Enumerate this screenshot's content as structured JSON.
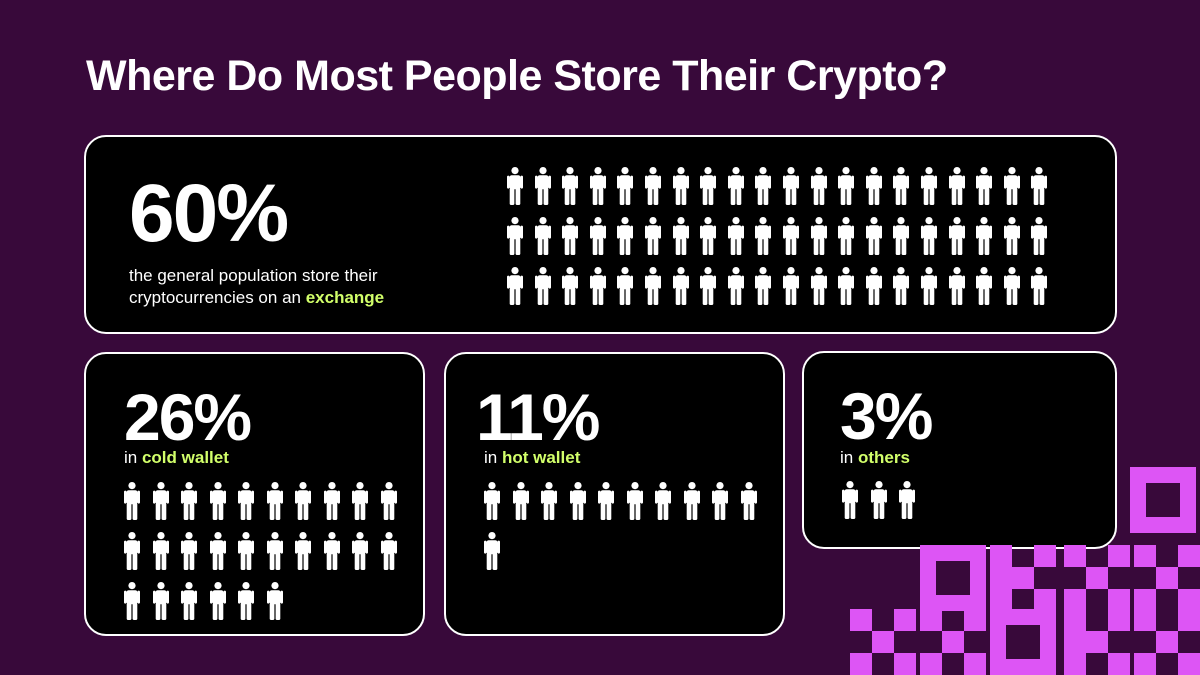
{
  "title": "Where Do Most People Store Their Crypto?",
  "cards": {
    "exchange": {
      "pct": "60%",
      "line1": "the general population store their",
      "line2_prefix": "cryptocurrencies on an ",
      "highlight": "exchange"
    },
    "cold": {
      "pct": "26%",
      "prefix": "in ",
      "highlight": "cold wallet"
    },
    "hot": {
      "pct": "11%",
      "prefix": "in ",
      "highlight": "hot wallet"
    },
    "others": {
      "pct": "3%",
      "prefix": "in ",
      "highlight": "others"
    }
  },
  "colors": {
    "background": "#38093a",
    "card": "#000000",
    "highlight": "#d2ff6a",
    "logo": "#dd55f5",
    "figure": "#ffffff"
  },
  "icons": {
    "person": "person-icon",
    "logo": "okx-logo"
  },
  "chart_data": {
    "type": "pictogram",
    "title": "Where Do Most People Store Their Crypto?",
    "unit": "1 figure = 1%",
    "categories": [
      "exchange",
      "cold wallet",
      "hot wallet",
      "others"
    ],
    "values": [
      60,
      26,
      11,
      3
    ]
  }
}
